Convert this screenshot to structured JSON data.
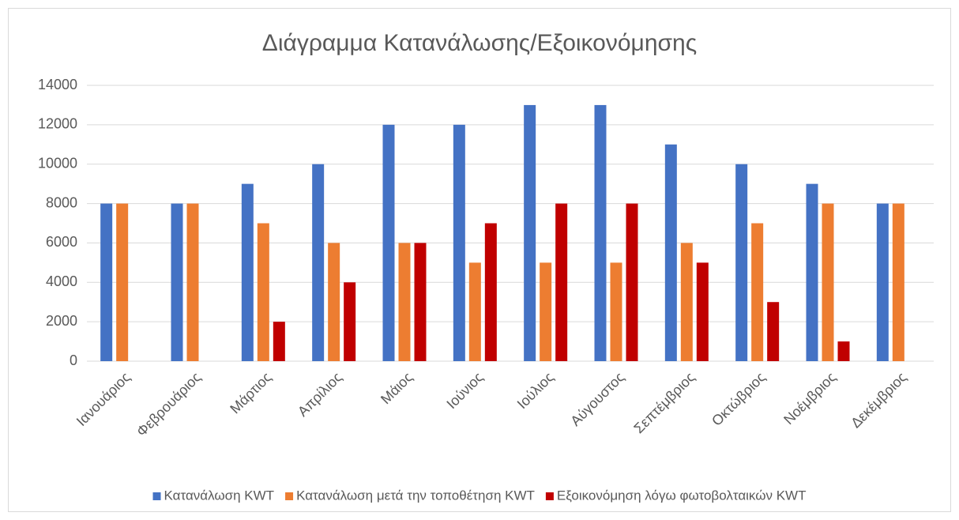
{
  "chart_data": {
    "type": "bar",
    "title": "Διάγραμμα Κατανάλωσης/Εξοικονόμησης",
    "categories": [
      "Ιανουάριος",
      "Φεβρουάριος",
      "Μάρτιος",
      "Απρίλιος",
      "Μάιος",
      "Ιούνιος",
      "Ιούλιος",
      "Αύγουστος",
      "Σεπτέμβριος",
      "Οκτώβριος",
      "Νοέμβριος",
      "Δεκέμβριος"
    ],
    "series": [
      {
        "name": "Κατανάλωση KWT",
        "color": "#4472c4",
        "values": [
          8000,
          8000,
          9000,
          10000,
          12000,
          12000,
          13000,
          13000,
          11000,
          10000,
          9000,
          8000
        ]
      },
      {
        "name": "Κατανάλωση μετά την τοποθέτηση KWT",
        "color": "#ed7d31",
        "values": [
          8000,
          8000,
          7000,
          6000,
          6000,
          5000,
          5000,
          5000,
          6000,
          7000,
          8000,
          8000
        ]
      },
      {
        "name": "Εξοικονόμηση λόγω φωτοβολταικών KWT",
        "color": "#c00000",
        "values": [
          0,
          0,
          2000,
          4000,
          6000,
          7000,
          8000,
          8000,
          5000,
          3000,
          1000,
          0
        ]
      }
    ],
    "ylim": [
      0,
      14000
    ],
    "yticks": [
      0,
      2000,
      4000,
      6000,
      8000,
      10000,
      12000,
      14000
    ],
    "grid": true,
    "legend": "bottom"
  }
}
